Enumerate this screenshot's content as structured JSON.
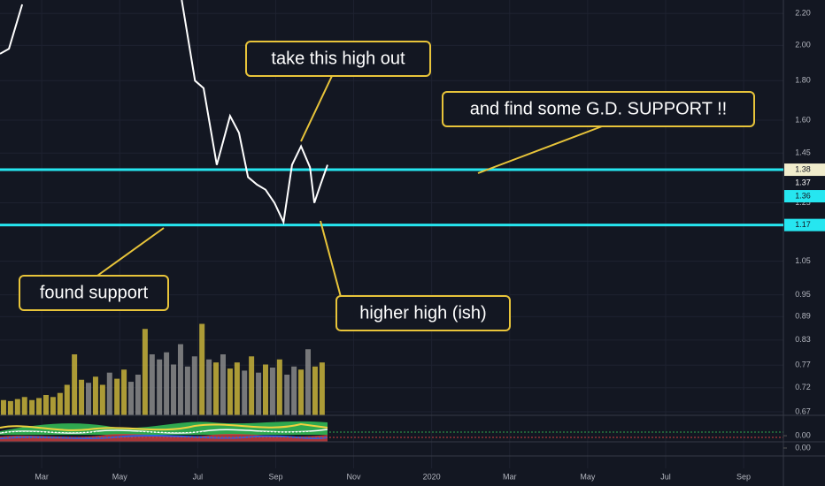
{
  "chart_data": {
    "type": "line",
    "log_scale": true,
    "grid": true,
    "background": "#131722",
    "line_color": "#ffffff",
    "x": [
      -1.07,
      -0.84,
      -0.5,
      -0.39,
      3.59,
      3.93,
      4.15,
      4.49,
      4.83,
      5.06,
      5.29,
      5.52,
      5.74,
      5.97,
      6.2,
      6.42,
      6.65,
      6.88,
      6.99,
      7.15,
      7.33
    ],
    "values": [
      1.95,
      1.98,
      2.26,
      null,
      2.29,
      1.8,
      1.76,
      1.4,
      1.62,
      1.54,
      1.35,
      1.32,
      1.3,
      1.25,
      1.18,
      1.4,
      1.48,
      1.39,
      1.25,
      1.32,
      1.4
    ],
    "xlim": [
      -1.07,
      19.02
    ],
    "xticks": [
      {
        "value": 0,
        "label": "Mar"
      },
      {
        "value": 2,
        "label": "May"
      },
      {
        "value": 4,
        "label": "Jul"
      },
      {
        "value": 6,
        "label": "Sep"
      },
      {
        "value": 8,
        "label": "Nov"
      },
      {
        "value": 10,
        "label": "2020"
      },
      {
        "value": 12,
        "label": "Mar"
      },
      {
        "value": 14,
        "label": "May"
      },
      {
        "value": 16,
        "label": "Jul"
      },
      {
        "value": 18,
        "label": "Sep"
      }
    ],
    "ylim": [
      0.663,
      2.29
    ],
    "yticks": [
      {
        "value": 2.2,
        "label": "2.20"
      },
      {
        "value": 2.0,
        "label": "2.00"
      },
      {
        "value": 1.8,
        "label": "1.80"
      },
      {
        "value": 1.6,
        "label": "1.60"
      },
      {
        "value": 1.45,
        "label": "1.45"
      },
      {
        "value": 1.25,
        "label": "1.25"
      },
      {
        "value": 1.05,
        "label": "1.05"
      },
      {
        "value": 0.95,
        "label": "0.95"
      },
      {
        "value": 0.89,
        "label": "0.89"
      },
      {
        "value": 0.83,
        "label": "0.83"
      },
      {
        "value": 0.77,
        "label": "0.77"
      },
      {
        "value": 0.72,
        "label": "0.72"
      },
      {
        "value": 0.67,
        "label": "0.67"
      }
    ],
    "hlines": [
      {
        "value": 1.38,
        "color": "#26e6f0"
      },
      {
        "value": 1.17,
        "color": "#26e6f0"
      }
    ],
    "price_tags": [
      {
        "value": 1.38,
        "label": "1.38",
        "color": "#f0eccc"
      },
      {
        "value": 1.37,
        "label": "1.37",
        "color": "#131722"
      },
      {
        "value": 1.36,
        "label": "1.36",
        "color": "#26e6f0"
      },
      {
        "value": 1.17,
        "label": "1.17",
        "color": "#26e6f0"
      }
    ],
    "volume": {
      "vlim": [
        0,
        100
      ],
      "x": [
        -0.98,
        -0.8,
        -0.62,
        -0.44,
        -0.25,
        -0.07,
        0.11,
        0.29,
        0.47,
        0.65,
        0.84,
        1.02,
        1.2,
        1.38,
        1.56,
        1.74,
        1.93,
        2.11,
        2.29,
        2.47,
        2.65,
        2.83,
        3.02,
        3.2,
        3.38,
        3.56,
        3.74,
        3.92,
        4.11,
        4.29,
        4.47,
        4.65,
        4.83,
        5.01,
        5.2,
        5.38,
        5.56,
        5.74,
        5.92,
        6.1,
        6.29,
        6.47,
        6.65,
        6.83,
        7.01,
        7.19
      ],
      "values": [
        15,
        14,
        16,
        18,
        15,
        17,
        20,
        18,
        22,
        30,
        60,
        35,
        32,
        38,
        30,
        42,
        36,
        45,
        33,
        40,
        85,
        60,
        55,
        62,
        50,
        70,
        48,
        58,
        90,
        55,
        52,
        60,
        46,
        52,
        44,
        58,
        42,
        50,
        47,
        55,
        40,
        48,
        45,
        65,
        48,
        52
      ],
      "colors": [
        "#c8b33a",
        "#c8b33a",
        "#c8b33a",
        "#c8b33a",
        "#c8b33a",
        "#c8b33a",
        "#c8b33a",
        "#c8b33a",
        "#c8b33a",
        "#c8b33a",
        "#c8b33a",
        "#c8b33a",
        "#8a8a8a",
        "#c8b33a",
        "#c8b33a",
        "#8a8a8a",
        "#c8b33a",
        "#c8b33a",
        "#8a8a8a",
        "#8a8a8a",
        "#c8b33a",
        "#8a8a8a",
        "#8a8a8a",
        "#8a8a8a",
        "#8a8a8a",
        "#8a8a8a",
        "#8a8a8a",
        "#8a8a8a",
        "#c8b33a",
        "#8a8a8a",
        "#c8b33a",
        "#8a8a8a",
        "#c8b33a",
        "#c8b33a",
        "#8a8a8a",
        "#c8b33a",
        "#8a8a8a",
        "#c8b33a",
        "#8a8a8a",
        "#c8b33a",
        "#8a8a8a",
        "#8a8a8a",
        "#c8b33a",
        "#8a8a8a",
        "#c8b33a",
        "#c8b33a"
      ]
    },
    "indicator_pane": {
      "ylim": [
        -0.3,
        1
      ],
      "yticks": [
        {
          "value": 0,
          "label": "0.00"
        }
      ]
    },
    "lower_pane": {
      "ylim": [
        -1.29,
        1
      ],
      "yticks": [
        {
          "value": 0,
          "label": "0.00"
        }
      ]
    },
    "annotations": [
      "take this high out",
      "and find some G.D. SUPPORT !!",
      "found support",
      "higher high (ish)"
    ]
  }
}
